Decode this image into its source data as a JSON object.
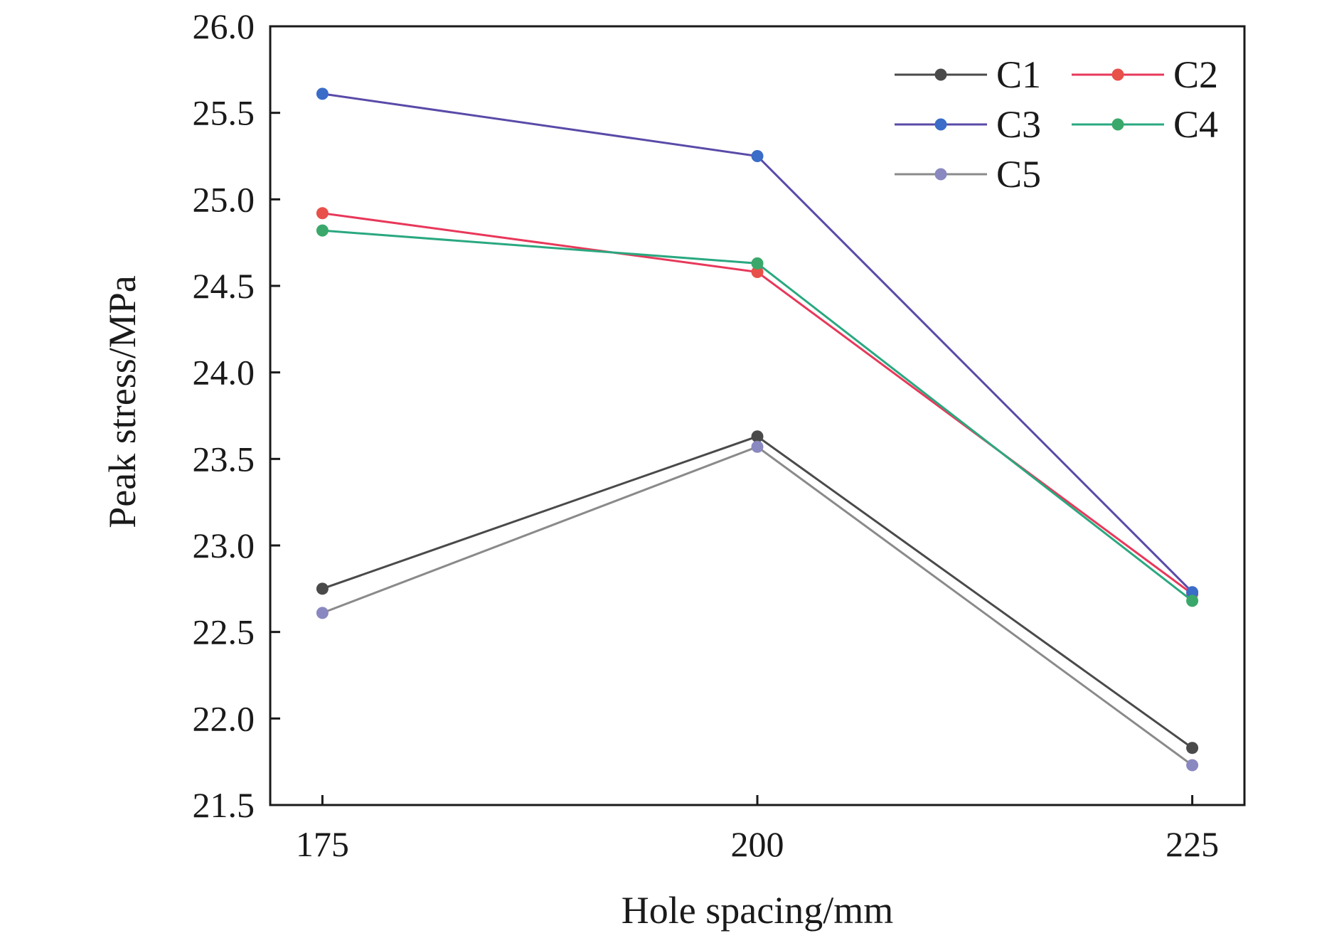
{
  "chart_data": {
    "type": "line",
    "xlabel": "Hole spacing/mm",
    "ylabel": "Peak stress/MPa",
    "x": [
      175,
      200,
      225
    ],
    "x_tick_labels": [
      "175",
      "200",
      "225"
    ],
    "xlim": [
      172,
      228
    ],
    "ylim": [
      21.5,
      26.0
    ],
    "y_ticks": [
      21.5,
      22.0,
      22.5,
      23.0,
      23.5,
      24.0,
      24.5,
      25.0,
      25.5,
      26.0
    ],
    "y_tick_labels": [
      "21.5",
      "22.0",
      "22.5",
      "23.0",
      "23.5",
      "24.0",
      "24.5",
      "25.0",
      "25.5",
      "26.0"
    ],
    "grid": false,
    "legend_position": "top-right",
    "series": [
      {
        "name": "C1",
        "values": [
          22.75,
          23.63,
          21.83
        ],
        "line_color": "#4a4a4a",
        "marker_color": "#4a4a4a"
      },
      {
        "name": "C2",
        "values": [
          24.92,
          24.58,
          22.72
        ],
        "line_color": "#e8385a",
        "marker_color": "#e8504a"
      },
      {
        "name": "C3",
        "values": [
          25.61,
          25.25,
          22.73
        ],
        "line_color": "#5a4aa8",
        "marker_color": "#3a6cc8"
      },
      {
        "name": "C4",
        "values": [
          24.82,
          24.63,
          22.68
        ],
        "line_color": "#2aa880",
        "marker_color": "#3aa86a"
      },
      {
        "name": "C5",
        "values": [
          22.61,
          23.57,
          21.73
        ],
        "line_color": "#8a8a8a",
        "marker_color": "#8a88c0"
      }
    ]
  }
}
